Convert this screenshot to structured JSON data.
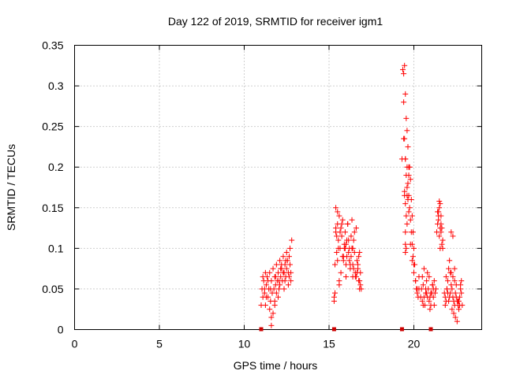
{
  "chart_data": {
    "type": "scatter",
    "title": "Day 122 of 2019, SRMTID for receiver igm1",
    "xlabel": "GPS time / hours",
    "ylabel": "SRMTID / TECUs",
    "xlim": [
      0,
      24
    ],
    "ylim": [
      0,
      0.35
    ],
    "xticks": [
      0,
      5,
      10,
      15,
      20
    ],
    "xtick_labels": [
      "0",
      "5",
      "10",
      "15",
      "20"
    ],
    "yticks": [
      0,
      0.05,
      0.1,
      0.15,
      0.2,
      0.25,
      0.3,
      0.35
    ],
    "ytick_labels": [
      "0",
      "0.05",
      "0.1",
      "0.15",
      "0.2",
      "0.25",
      "0.3",
      "0.35"
    ],
    "grid": true,
    "marker": "+",
    "color": "#ff0000",
    "zero_markers_color": "#cc0000",
    "zero_markers_x": [
      11.0,
      15.3,
      19.3,
      21.0
    ],
    "series": [
      {
        "name": "SRMTID",
        "x": [
          11.0,
          11.05,
          11.1,
          11.15,
          11.2,
          11.25,
          11.3,
          11.35,
          11.4,
          11.45,
          11.5,
          11.55,
          11.6,
          11.65,
          11.7,
          11.75,
          11.8,
          11.85,
          11.9,
          11.95,
          12.0,
          12.05,
          12.1,
          12.15,
          12.2,
          12.25,
          12.3,
          12.35,
          12.4,
          12.45,
          12.5,
          12.55,
          12.6,
          12.65,
          12.7,
          12.75,
          12.8,
          11.1,
          11.3,
          11.5,
          11.7,
          11.9,
          12.1,
          12.3,
          12.5,
          12.7,
          11.2,
          11.4,
          11.6,
          11.8,
          12.0,
          12.2,
          12.4,
          12.6,
          11.25,
          11.55,
          11.85,
          12.15,
          12.45,
          12.75,
          11.6,
          11.8,
          12.05,
          12.35,
          12.65,
          15.3,
          15.35,
          15.4,
          15.45,
          15.5,
          15.55,
          15.6,
          15.65,
          15.7,
          15.75,
          15.8,
          15.85,
          15.9,
          15.95,
          16.0,
          16.05,
          16.1,
          16.15,
          16.2,
          16.25,
          16.3,
          16.35,
          16.4,
          16.45,
          16.5,
          16.55,
          16.6,
          16.65,
          16.7,
          16.75,
          16.8,
          16.85,
          16.9,
          15.4,
          15.5,
          15.6,
          15.7,
          15.8,
          15.9,
          16.0,
          16.1,
          16.2,
          16.3,
          16.4,
          16.5,
          16.6,
          16.7,
          16.8,
          15.35,
          15.45,
          15.55,
          15.65,
          15.75,
          15.85,
          15.95,
          16.05,
          16.15,
          16.25,
          16.35,
          16.45,
          16.55,
          16.65,
          16.75,
          16.85,
          15.3,
          15.4,
          15.5,
          15.6,
          16.0,
          16.4,
          16.8,
          19.3,
          19.35,
          19.4,
          19.45,
          19.5,
          19.55,
          19.6,
          19.65,
          19.7,
          19.75,
          19.8,
          19.85,
          19.9,
          19.95,
          20.0,
          20.05,
          20.1,
          20.15,
          20.2,
          20.25,
          20.3,
          19.4,
          19.45,
          19.5,
          19.55,
          19.6,
          19.65,
          19.7,
          19.45,
          19.5,
          19.55,
          19.6,
          19.5,
          19.55,
          19.5,
          19.5,
          19.45,
          19.6,
          19.65,
          19.7,
          19.75,
          19.8,
          19.85,
          19.9,
          19.95,
          20.0,
          20.1,
          20.2,
          20.3,
          19.4,
          19.5,
          19.6,
          19.7,
          19.8,
          19.9,
          20.0,
          20.4,
          20.45,
          20.5,
          20.55,
          20.6,
          20.65,
          20.7,
          20.75,
          20.8,
          20.85,
          20.9,
          20.95,
          21.0,
          21.05,
          21.1,
          21.15,
          21.2,
          21.25,
          21.3,
          20.5,
          20.6,
          20.7,
          20.8,
          20.9,
          21.0,
          21.1,
          21.2,
          20.55,
          20.75,
          20.95,
          21.15,
          21.35,
          21.4,
          21.45,
          21.5,
          21.55,
          21.6,
          21.65,
          21.7,
          21.45,
          21.5,
          21.55,
          21.6,
          21.4,
          21.5,
          21.6,
          21.7,
          21.45,
          21.55,
          21.65,
          21.8,
          21.85,
          21.9,
          21.95,
          22.0,
          22.05,
          22.1,
          22.15,
          22.2,
          22.25,
          22.3,
          22.35,
          22.4,
          22.45,
          22.5,
          22.55,
          22.6,
          22.65,
          22.7,
          22.75,
          22.8,
          22.85,
          21.9,
          22.0,
          22.1,
          22.2,
          22.3,
          22.4,
          22.5,
          22.6,
          22.7,
          22.8,
          21.85,
          21.95,
          22.05,
          22.15,
          22.25,
          22.35,
          22.45,
          22.55,
          22.65,
          22.75,
          22.2,
          22.3,
          22.4
        ],
        "y": [
          0.03,
          0.05,
          0.04,
          0.06,
          0.045,
          0.03,
          0.055,
          0.065,
          0.04,
          0.05,
          0.07,
          0.035,
          0.06,
          0.045,
          0.075,
          0.05,
          0.065,
          0.055,
          0.08,
          0.06,
          0.07,
          0.05,
          0.085,
          0.065,
          0.075,
          0.06,
          0.09,
          0.07,
          0.08,
          0.065,
          0.075,
          0.085,
          0.07,
          0.09,
          0.08,
          0.06,
          0.11,
          0.065,
          0.04,
          0.025,
          0.02,
          0.045,
          0.055,
          0.07,
          0.095,
          0.1,
          0.05,
          0.06,
          0.015,
          0.035,
          0.04,
          0.08,
          0.06,
          0.055,
          0.07,
          0.05,
          0.065,
          0.075,
          0.085,
          0.07,
          0.005,
          0.03,
          0.06,
          0.05,
          0.065,
          0.035,
          0.08,
          0.12,
          0.095,
          0.13,
          0.11,
          0.14,
          0.1,
          0.125,
          0.115,
          0.135,
          0.09,
          0.1,
          0.12,
          0.105,
          0.11,
          0.13,
          0.095,
          0.085,
          0.075,
          0.09,
          0.1,
          0.08,
          0.11,
          0.12,
          0.07,
          0.065,
          0.085,
          0.075,
          0.09,
          0.06,
          0.07,
          0.05,
          0.15,
          0.145,
          0.06,
          0.07,
          0.09,
          0.105,
          0.08,
          0.13,
          0.1,
          0.115,
          0.065,
          0.095,
          0.125,
          0.08,
          0.05,
          0.045,
          0.115,
          0.1,
          0.12,
          0.13,
          0.085,
          0.1,
          0.09,
          0.11,
          0.08,
          0.135,
          0.075,
          0.065,
          0.07,
          0.06,
          0.055,
          0.04,
          0.125,
          0.085,
          0.055,
          0.065,
          0.1,
          0.095,
          0.21,
          0.32,
          0.28,
          0.235,
          0.21,
          0.19,
          0.175,
          0.16,
          0.19,
          0.2,
          0.185,
          0.16,
          0.14,
          0.12,
          0.1,
          0.08,
          0.06,
          0.05,
          0.045,
          0.04,
          0.05,
          0.315,
          0.325,
          0.29,
          0.26,
          0.245,
          0.225,
          0.2,
          0.17,
          0.155,
          0.14,
          0.13,
          0.12,
          0.1,
          0.095,
          0.105,
          0.165,
          0.2,
          0.18,
          0.165,
          0.15,
          0.135,
          0.12,
          0.105,
          0.09,
          0.07,
          0.06,
          0.05,
          0.065,
          0.235,
          0.21,
          0.165,
          0.145,
          0.105,
          0.085,
          0.08,
          0.04,
          0.05,
          0.065,
          0.055,
          0.04,
          0.03,
          0.045,
          0.06,
          0.07,
          0.05,
          0.035,
          0.025,
          0.03,
          0.045,
          0.055,
          0.04,
          0.03,
          0.045,
          0.05,
          0.035,
          0.075,
          0.05,
          0.04,
          0.065,
          0.045,
          0.055,
          0.06,
          0.03,
          0.045,
          0.04,
          0.05,
          0.12,
          0.13,
          0.14,
          0.15,
          0.155,
          0.14,
          0.125,
          0.11,
          0.135,
          0.115,
          0.1,
          0.13,
          0.145,
          0.158,
          0.12,
          0.1,
          0.145,
          0.125,
          0.105,
          0.045,
          0.04,
          0.035,
          0.05,
          0.06,
          0.075,
          0.085,
          0.07,
          0.055,
          0.05,
          0.04,
          0.035,
          0.03,
          0.045,
          0.04,
          0.035,
          0.03,
          0.025,
          0.04,
          0.055,
          0.045,
          0.03,
          0.065,
          0.045,
          0.04,
          0.12,
          0.115,
          0.075,
          0.055,
          0.035,
          0.03,
          0.06,
          0.03,
          0.05,
          0.035,
          0.045,
          0.025,
          0.02,
          0.015,
          0.01,
          0.035,
          0.05,
          0.07,
          0.065,
          0.06
        ]
      }
    ]
  }
}
